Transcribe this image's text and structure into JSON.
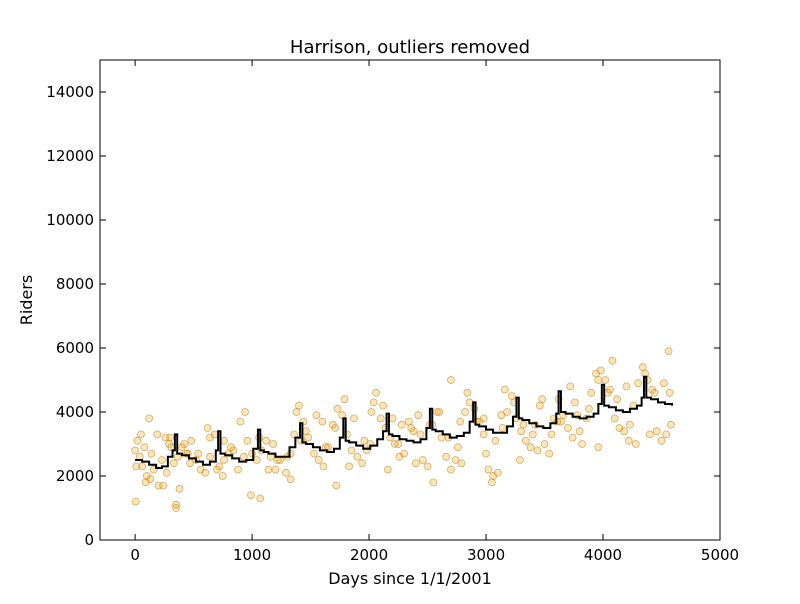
{
  "chart_data": {
    "type": "scatter",
    "title": "Harrison, outliers removed",
    "xlabel": "Days since 1/1/2001",
    "ylabel": "Riders",
    "xlim": [
      -300,
      5000
    ],
    "ylim": [
      0,
      15000
    ],
    "xticks": [
      0,
      1000,
      2000,
      3000,
      4000,
      5000
    ],
    "yticks": [
      0,
      2000,
      4000,
      6000,
      8000,
      10000,
      12000,
      14000
    ],
    "grid": false,
    "legend": "none",
    "colors": {
      "points_fill": "#f0a30a",
      "points_stroke": "#b87500",
      "line": "#000000"
    },
    "series": [
      {
        "kind": "points",
        "description": "daily ridership observations with seasonal cycles and upward trend",
        "x": [
          0,
          20,
          40,
          60,
          80,
          100,
          130,
          160,
          200,
          230,
          260,
          290,
          310,
          330,
          350,
          365,
          400,
          440,
          480,
          520,
          560,
          600,
          640,
          680,
          720,
          750,
          800,
          840,
          880,
          930,
          960,
          1000,
          1040,
          1080,
          1120,
          1160,
          1200,
          1240,
          1290,
          1330,
          1360,
          1400,
          1440,
          1480,
          1530,
          1570,
          1610,
          1650,
          1690,
          1730,
          1770,
          1810,
          1850,
          1900,
          1940,
          1980,
          2020,
          2060,
          2100,
          2140,
          2180,
          2220,
          2260,
          2300,
          2340,
          2380,
          2420,
          2460,
          2500,
          2540,
          2580,
          2620,
          2660,
          2700,
          2740,
          2780,
          2820,
          2860,
          2900,
          2940,
          2980,
          3020,
          3060,
          3100,
          3140,
          3180,
          3220,
          3260,
          3300,
          3340,
          3380,
          3420,
          3460,
          3500,
          3540,
          3580,
          3620,
          3660,
          3700,
          3740,
          3780,
          3820,
          3860,
          3900,
          3940,
          3980,
          4020,
          4060,
          4100,
          4140,
          4180,
          4220,
          4260,
          4300,
          4340,
          4380,
          4420,
          4460,
          4500,
          4540,
          4570,
          10,
          50,
          90,
          140,
          190,
          240,
          300,
          380,
          420,
          470,
          540,
          620,
          700,
          760,
          820,
          900,
          990,
          1060,
          1140,
          1220,
          1300,
          1380,
          1460,
          1550,
          1630,
          1710,
          1790,
          1870,
          1960,
          2040,
          2120,
          2200,
          2280,
          2360,
          2440,
          2520,
          2600,
          2680,
          2760,
          2840,
          2920,
          3000,
          3080,
          3160,
          3240,
          3320,
          3400,
          3480,
          3560,
          3640,
          3720,
          3800,
          3880,
          3960,
          4040,
          4120,
          4200,
          4280,
          4360,
          4440,
          4520,
          4580,
          5,
          120,
          270,
          350,
          450,
          640,
          760,
          940,
          1070,
          1180,
          1330,
          1420,
          1600,
          1720,
          1830,
          2010,
          2160,
          2250,
          2400,
          2550,
          2700,
          2790,
          2980,
          3050,
          3130,
          3290,
          3440,
          3610,
          3760,
          3960,
          4080,
          4230,
          4400,
          4560
        ],
        "y": [
          2800,
          3100,
          2600,
          2300,
          2900,
          2000,
          1900,
          2200,
          1700,
          2500,
          3200,
          3000,
          2900,
          2400,
          1100,
          2600,
          2900,
          2700,
          3100,
          2500,
          2200,
          2100,
          2600,
          3300,
          2300,
          2000,
          2700,
          2800,
          2200,
          2600,
          3100,
          2700,
          2500,
          2800,
          3100,
          2600,
          2200,
          2500,
          2100,
          2700,
          3300,
          4200,
          3700,
          3200,
          2700,
          2500,
          2300,
          2900,
          3600,
          4100,
          3900,
          3300,
          2800,
          2600,
          2400,
          2800,
          4000,
          4600,
          3800,
          3500,
          3200,
          3000,
          2600,
          2700,
          3700,
          3400,
          3900,
          2500,
          2300,
          3600,
          4000,
          3200,
          2600,
          2200,
          2500,
          3700,
          4000,
          4300,
          4100,
          3700,
          3300,
          2200,
          2000,
          2100,
          3500,
          4000,
          4500,
          3800,
          3400,
          3100,
          2900,
          3600,
          4200,
          3000,
          2700,
          3800,
          4400,
          3900,
          3500,
          3200,
          3900,
          3000,
          3800,
          4600,
          5200,
          5300,
          5000,
          4700,
          3800,
          3500,
          3400,
          3100,
          4200,
          4900,
          5400,
          5000,
          4700,
          3400,
          3100,
          3300,
          4600,
          2300,
          3300,
          1800,
          2700,
          3300,
          1700,
          3200,
          1600,
          3000,
          2400,
          2700,
          3500,
          2200,
          3100,
          2900,
          3700,
          1400,
          3200,
          2200,
          2500,
          2600,
          4000,
          3400,
          3900,
          2900,
          3500,
          4400,
          3800,
          3100,
          4300,
          4200,
          3800,
          3600,
          3500,
          3300,
          3600,
          4000,
          3200,
          2900,
          4600,
          3700,
          2700,
          3100,
          4700,
          4300,
          3600,
          3300,
          4400,
          3300,
          3700,
          4800,
          3400,
          4100,
          5000,
          4600,
          4400,
          4800,
          3000,
          5200,
          4600,
          4900,
          3600,
          1200,
          3800,
          2100,
          1000,
          2700,
          3200,
          2500,
          4000,
          1300,
          3000,
          1900,
          3100,
          3700,
          1700,
          2300,
          3000,
          2200,
          3000,
          2400,
          1800,
          5000,
          2400,
          3800,
          1800,
          3900,
          2500,
          2800,
          3700,
          4300,
          2900,
          5600,
          3600,
          3300,
          5900
        ]
      },
      {
        "kind": "line",
        "description": "smoothed trend with yearly peaks",
        "x": [
          0,
          60,
          120,
          180,
          230,
          280,
          320,
          340,
          360,
          400,
          460,
          520,
          580,
          640,
          690,
          710,
          730,
          770,
          830,
          890,
          950,
          1010,
          1050,
          1070,
          1100,
          1140,
          1200,
          1260,
          1320,
          1370,
          1410,
          1430,
          1460,
          1520,
          1580,
          1640,
          1700,
          1750,
          1780,
          1800,
          1830,
          1890,
          1950,
          2010,
          2070,
          2120,
          2150,
          2170,
          2200,
          2260,
          2320,
          2380,
          2440,
          2490,
          2520,
          2540,
          2570,
          2630,
          2690,
          2750,
          2810,
          2860,
          2890,
          2910,
          2940,
          3000,
          3060,
          3120,
          3180,
          3230,
          3260,
          3280,
          3310,
          3370,
          3430,
          3490,
          3550,
          3600,
          3620,
          3640,
          3680,
          3740,
          3800,
          3860,
          3920,
          3960,
          3990,
          4010,
          4050,
          4110,
          4170,
          4230,
          4290,
          4330,
          4350,
          4370,
          4410,
          4470,
          4530,
          4590
        ],
        "y": [
          2500,
          2450,
          2350,
          2250,
          2300,
          2600,
          2800,
          3300,
          2700,
          2650,
          2550,
          2450,
          2350,
          2450,
          2800,
          3400,
          2700,
          2650,
          2550,
          2450,
          2500,
          2850,
          3450,
          2800,
          2750,
          2700,
          2600,
          2600,
          2900,
          3200,
          3650,
          3050,
          3000,
          2900,
          2800,
          2750,
          2850,
          3200,
          3800,
          3100,
          3050,
          2950,
          2850,
          2950,
          3150,
          3400,
          3950,
          3300,
          3250,
          3150,
          3100,
          3050,
          3150,
          3500,
          4100,
          3450,
          3400,
          3300,
          3200,
          3250,
          3350,
          3700,
          4300,
          3600,
          3550,
          3450,
          3350,
          3350,
          3550,
          3850,
          4450,
          3800,
          3750,
          3650,
          3550,
          3500,
          3650,
          3950,
          4650,
          4000,
          3950,
          3850,
          3800,
          3850,
          3950,
          4250,
          4850,
          4200,
          4150,
          4050,
          4000,
          4100,
          4200,
          4450,
          5100,
          4450,
          4400,
          4300,
          4250,
          4200
        ]
      }
    ]
  }
}
